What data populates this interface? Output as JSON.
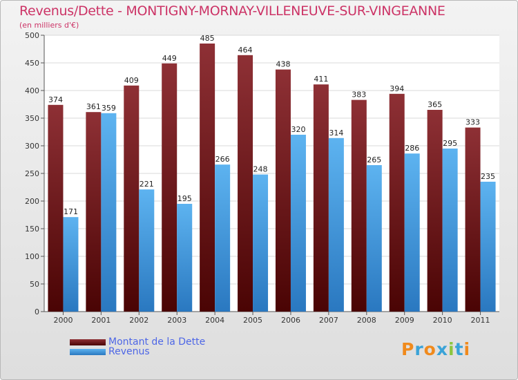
{
  "chart_data": {
    "type": "bar",
    "title": "Revenus/Dette - MONTIGNY-MORNAY-VILLENEUVE-SUR-VINGEANNE",
    "subtitle": "(en milliers d'€)",
    "categories": [
      "2000",
      "2001",
      "2002",
      "2003",
      "2004",
      "2005",
      "2006",
      "2007",
      "2008",
      "2009",
      "2010",
      "2011"
    ],
    "series": [
      {
        "name": "Montant de la Dette",
        "values": [
          374,
          361,
          409,
          449,
          485,
          464,
          438,
          411,
          383,
          394,
          365,
          333
        ],
        "color": "#7a1e22"
      },
      {
        "name": "Revenus",
        "values": [
          171,
          359,
          221,
          195,
          266,
          248,
          320,
          314,
          265,
          286,
          295,
          235
        ],
        "color": "#4da6e8"
      }
    ],
    "yticks": [
      0,
      50,
      100,
      150,
      200,
      250,
      300,
      350,
      400,
      450,
      500
    ],
    "ylim": [
      0,
      500
    ],
    "grid": true,
    "legend": "bottom-left"
  },
  "logo": {
    "text": "Proxiti"
  }
}
